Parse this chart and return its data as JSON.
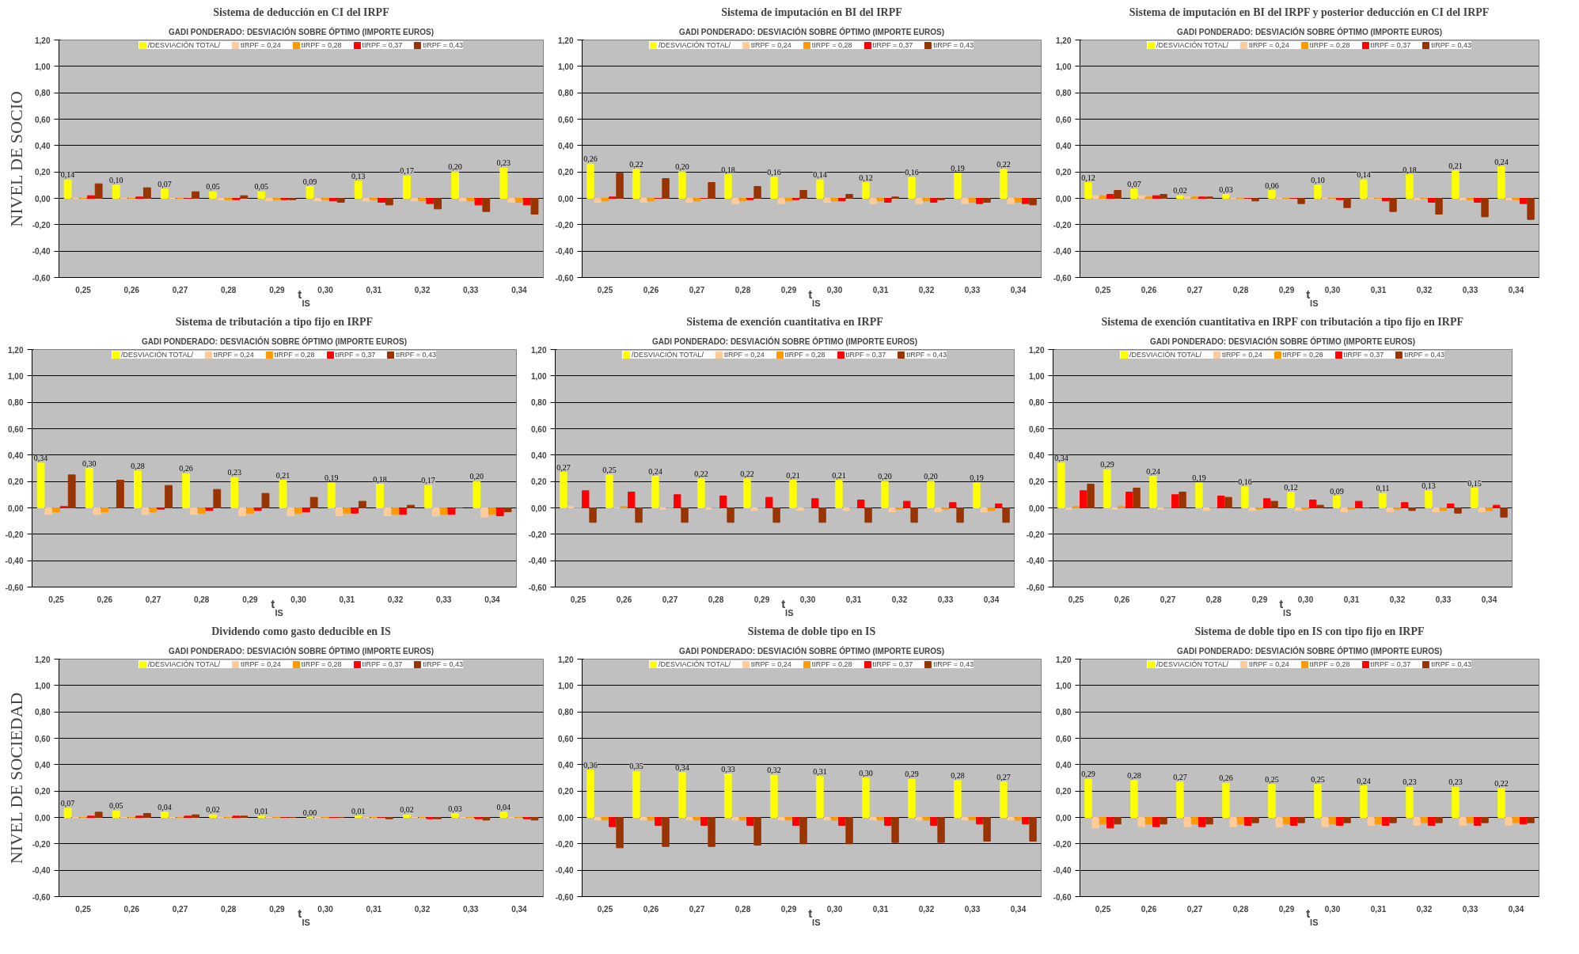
{
  "chart_data": [
    {
      "type": "bar",
      "title": "Sistema de deducción en CI del IRPF",
      "subtitle": "GADI PONDERADO: DESVIACIÓN SOBRE ÓPTIMO (IMPORTE EUROS)",
      "xlabel": "t$_{IS}$",
      "annotations": [
        "NIVEL DE SOCIO"
      ],
      "categories": [
        "0,25",
        "0,26",
        "0,27",
        "0,28",
        "0,29",
        "0,30",
        "0,31",
        "0,32",
        "0,33",
        "0,34"
      ],
      "ylim": [
        -0.6,
        1.2
      ],
      "yticks": [
        {
          "value": -0.6,
          "label": "-0,60"
        },
        {
          "value": -0.4,
          "label": "-0,40"
        },
        {
          "value": -0.2,
          "label": "-0,20"
        },
        {
          "value": 0,
          "label": "0,00"
        },
        {
          "value": 0.2,
          "label": "0,20"
        },
        {
          "value": 0.4,
          "label": "0,40"
        },
        {
          "value": 0.6,
          "label": "0,60"
        },
        {
          "value": 0.8,
          "label": "0,80"
        },
        {
          "value": 1.0,
          "label": "1,00"
        },
        {
          "value": 1.2,
          "label": "1,20"
        }
      ],
      "grid": "y",
      "legend": "top",
      "series": [
        {
          "name": "/DESVIACIÓN TOTAL/",
          "color": "#ffff00",
          "values": [
            0.14,
            0.1,
            0.07,
            0.05,
            0.05,
            0.09,
            0.13,
            0.17,
            0.2,
            0.23
          ],
          "value_labels": [
            "0,14",
            "0,10",
            "0,07",
            "0,05",
            "0,05",
            "0,09",
            "0,13",
            "0,17",
            "0,20",
            "0,23"
          ]
        },
        {
          "name": "tIRPF = 0,24",
          "color": "#ffcc99",
          "values": [
            0,
            0,
            0,
            -0.01,
            -0.02,
            -0.02,
            -0.02,
            -0.02,
            -0.02,
            -0.03
          ]
        },
        {
          "name": "tIRPF = 0,28",
          "color": "#ff9900",
          "values": [
            0,
            0,
            0,
            -0.01,
            -0.01,
            -0.01,
            -0.01,
            -0.02,
            -0.02,
            -0.03
          ]
        },
        {
          "name": "tIRPF = 0,37",
          "color": "#ff0000",
          "values": [
            0.02,
            0.01,
            0,
            -0.01,
            -0.01,
            -0.02,
            -0.03,
            -0.04,
            -0.05,
            -0.05
          ]
        },
        {
          "name": "tIRPF = 0,43",
          "color": "#993300",
          "values": [
            0.11,
            0.08,
            0.05,
            0.02,
            -0.01,
            -0.03,
            -0.05,
            -0.08,
            -0.1,
            -0.12
          ]
        }
      ]
    },
    {
      "type": "bar",
      "title": "Sistema de imputación en BI del IRPF",
      "subtitle": "GADI PONDERADO: DESVIACIÓN SOBRE ÓPTIMO (IMPORTE EUROS)",
      "xlabel": "t$_{IS}$",
      "categories": [
        "0,25",
        "0,26",
        "0,27",
        "0,28",
        "0,29",
        "0,30",
        "0,31",
        "0,32",
        "0,33",
        "0,34"
      ],
      "ylim": [
        -0.6,
        1.2
      ],
      "yticks": [
        {
          "value": -0.6,
          "label": "-0,60"
        },
        {
          "value": -0.4,
          "label": "-0,40"
        },
        {
          "value": -0.2,
          "label": "-0,20"
        },
        {
          "value": 0,
          "label": "0,00"
        },
        {
          "value": 0.2,
          "label": "0,20"
        },
        {
          "value": 0.4,
          "label": "0,40"
        },
        {
          "value": 0.6,
          "label": "0,60"
        },
        {
          "value": 0.8,
          "label": "0,80"
        },
        {
          "value": 1.0,
          "label": "1,00"
        },
        {
          "value": 1.2,
          "label": "1,20"
        }
      ],
      "grid": "y",
      "legend": "top",
      "series": [
        {
          "name": "/DESVIACIÓN TOTAL/",
          "color": "#ffff00",
          "values": [
            0.26,
            0.22,
            0.2,
            0.18,
            0.16,
            0.14,
            0.12,
            0.16,
            0.19,
            0.22
          ],
          "value_labels": [
            "0,26",
            "0,22",
            "0,20",
            "0,18",
            "0,16",
            "0,14",
            "0,12",
            "0,16",
            "0,19",
            "0,22"
          ]
        },
        {
          "name": "tIRPF = 0,24",
          "color": "#ffcc99",
          "values": [
            -0.03,
            -0.03,
            -0.03,
            -0.04,
            -0.04,
            -0.03,
            -0.04,
            -0.04,
            -0.04,
            -0.04
          ]
        },
        {
          "name": "tIRPF = 0,28",
          "color": "#ff9900",
          "values": [
            -0.02,
            -0.02,
            -0.02,
            -0.02,
            -0.02,
            -0.02,
            -0.02,
            -0.02,
            -0.03,
            -0.03
          ]
        },
        {
          "name": "tIRPF = 0,37",
          "color": "#ff0000",
          "values": [
            0.01,
            0,
            0,
            -0.01,
            -0.01,
            -0.02,
            -0.03,
            -0.03,
            -0.04,
            -0.04
          ]
        },
        {
          "name": "tIRPF = 0,43",
          "color": "#993300",
          "values": [
            0.19,
            0.15,
            0.12,
            0.09,
            0.06,
            0.03,
            0.01,
            -0.01,
            -0.03,
            -0.05
          ]
        }
      ]
    },
    {
      "type": "bar",
      "title": "Sistema de imputación en BI del IRPF y posterior deducción en CI del IRPF",
      "subtitle": "GADI PONDERADO: DESVIACIÓN SOBRE ÓPTIMO (IMPORTE EUROS)",
      "xlabel": "t$_{IS}$",
      "categories": [
        "0,25",
        "0,26",
        "0,27",
        "0,28",
        "0,29",
        "0,30",
        "0,31",
        "0,32",
        "0,33",
        "0,34"
      ],
      "ylim": [
        -0.6,
        1.2
      ],
      "yticks": [
        {
          "value": -0.6,
          "label": "-0,60"
        },
        {
          "value": -0.4,
          "label": "-0,40"
        },
        {
          "value": -0.2,
          "label": "-0,20"
        },
        {
          "value": 0,
          "label": "0,00"
        },
        {
          "value": 0.2,
          "label": "0,20"
        },
        {
          "value": 0.4,
          "label": "0,40"
        },
        {
          "value": 0.6,
          "label": "0,60"
        },
        {
          "value": 0.8,
          "label": "0,80"
        },
        {
          "value": 1.0,
          "label": "1,00"
        },
        {
          "value": 1.2,
          "label": "1,20"
        }
      ],
      "grid": "y",
      "legend": "top",
      "series": [
        {
          "name": "/DESVIACIÓN TOTAL/",
          "color": "#ffff00",
          "values": [
            0.12,
            0.07,
            0.02,
            0.03,
            0.06,
            0.1,
            0.14,
            0.18,
            0.21,
            0.24
          ],
          "value_labels": [
            "0,12",
            "0,07",
            "0,02",
            "0,03",
            "0,06",
            "0,10",
            "0,14",
            "0,18",
            "0,21",
            "0,24"
          ]
        },
        {
          "name": "tIRPF = 0,24",
          "color": "#ffcc99",
          "values": [
            0.02,
            0.02,
            0.01,
            0,
            0,
            0,
            0,
            -0.01,
            -0.01,
            -0.01
          ]
        },
        {
          "name": "tIRPF = 0,28",
          "color": "#ff9900",
          "values": [
            0.02,
            0.01,
            0.01,
            0,
            0,
            0,
            0,
            0,
            -0.01,
            -0.01
          ]
        },
        {
          "name": "tIRPF = 0,37",
          "color": "#ff0000",
          "values": [
            0.03,
            0.02,
            0.01,
            0,
            0,
            -0.01,
            -0.02,
            -0.03,
            -0.03,
            -0.04
          ]
        },
        {
          "name": "tIRPF = 0,43",
          "color": "#993300",
          "values": [
            0.06,
            0.03,
            0.01,
            -0.02,
            -0.04,
            -0.07,
            -0.1,
            -0.12,
            -0.14,
            -0.16
          ]
        }
      ]
    },
    {
      "type": "bar",
      "title": "Sistema de tributación a tipo fijo en IRPF",
      "subtitle": "GADI PONDERADO: DESVIACIÓN SOBRE ÓPTIMO (IMPORTE EUROS)",
      "xlabel": "t$_{IS}$",
      "categories": [
        "0,25",
        "0,26",
        "0,27",
        "0,28",
        "0,29",
        "0,30",
        "0,31",
        "0,32",
        "0,33",
        "0,34"
      ],
      "ylim": [
        -0.6,
        1.2
      ],
      "yticks": [
        {
          "value": -0.6,
          "label": "-0,60"
        },
        {
          "value": -0.4,
          "label": "-0,40"
        },
        {
          "value": -0.2,
          "label": "-0,20"
        },
        {
          "value": 0,
          "label": "0,00"
        },
        {
          "value": 0.2,
          "label": "0,20"
        },
        {
          "value": 0.4,
          "label": "0,40"
        },
        {
          "value": 0.6,
          "label": "0,60"
        },
        {
          "value": 0.8,
          "label": "0,80"
        },
        {
          "value": 1.0,
          "label": "1,00"
        },
        {
          "value": 1.2,
          "label": "1,20"
        }
      ],
      "grid": "y",
      "legend": "top",
      "series": [
        {
          "name": "/DESVIACIÓN TOTAL/",
          "color": "#ffff00",
          "values": [
            0.34,
            0.3,
            0.28,
            0.26,
            0.23,
            0.21,
            0.19,
            0.18,
            0.17,
            0.2
          ],
          "value_labels": [
            "0,34",
            "0,30",
            "0,28",
            "0,26",
            "0,23",
            "0,21",
            "0,19",
            "0,18",
            "0,17",
            "0,20"
          ]
        },
        {
          "name": "tIRPF = 0,24",
          "color": "#ffcc99",
          "values": [
            -0.05,
            -0.05,
            -0.05,
            -0.05,
            -0.06,
            -0.06,
            -0.06,
            -0.06,
            -0.06,
            -0.07
          ]
        },
        {
          "name": "tIRPF = 0,28",
          "color": "#ff9900",
          "values": [
            -0.03,
            -0.03,
            -0.03,
            -0.04,
            -0.04,
            -0.04,
            -0.04,
            -0.05,
            -0.05,
            -0.05
          ]
        },
        {
          "name": "tIRPF = 0,37",
          "color": "#ff0000",
          "values": [
            0.01,
            0,
            -0.01,
            -0.02,
            -0.02,
            -0.03,
            -0.04,
            -0.05,
            -0.05,
            -0.06
          ]
        },
        {
          "name": "tIRPF = 0,43",
          "color": "#993300",
          "values": [
            0.25,
            0.21,
            0.17,
            0.14,
            0.11,
            0.08,
            0.05,
            0.02,
            0,
            -0.03
          ]
        }
      ]
    },
    {
      "type": "bar",
      "title": "Sistema de exención cuantitativa en IRPF",
      "subtitle": "GADI PONDERADO: DESVIACIÓN SOBRE ÓPTIMO (IMPORTE EUROS)",
      "xlabel": "t$_{IS}$",
      "categories": [
        "0,25",
        "0,26",
        "0,27",
        "0,28",
        "0,29",
        "0,30",
        "0,31",
        "0,32",
        "0,33",
        "0,34"
      ],
      "ylim": [
        -0.6,
        1.2
      ],
      "yticks": [
        {
          "value": -0.6,
          "label": "-0,60"
        },
        {
          "value": -0.4,
          "label": "-0,40"
        },
        {
          "value": -0.2,
          "label": "-0,20"
        },
        {
          "value": 0,
          "label": "0,00"
        },
        {
          "value": 0.2,
          "label": "0,20"
        },
        {
          "value": 0.4,
          "label": "0,40"
        },
        {
          "value": 0.6,
          "label": "0,60"
        },
        {
          "value": 0.8,
          "label": "0,80"
        },
        {
          "value": 1.0,
          "label": "1,00"
        },
        {
          "value": 1.2,
          "label": "1,20"
        }
      ],
      "grid": "y",
      "legend": "top",
      "series": [
        {
          "name": "/DESVIACIÓN TOTAL/",
          "color": "#ffff00",
          "values": [
            0.27,
            0.25,
            0.24,
            0.22,
            0.22,
            0.21,
            0.21,
            0.2,
            0.2,
            0.19
          ],
          "value_labels": [
            "0,27",
            "0,25",
            "0,24",
            "0,22",
            "0,22",
            "0,21",
            "0,21",
            "0,20",
            "0,20",
            "0,19"
          ]
        },
        {
          "name": "tIRPF = 0,24",
          "color": "#ffcc99",
          "values": [
            0.01,
            0,
            -0.01,
            -0.01,
            -0.02,
            -0.02,
            -0.02,
            -0.03,
            -0.03,
            -0.03
          ]
        },
        {
          "name": "tIRPF = 0,28",
          "color": "#ff9900",
          "values": [
            0,
            0.01,
            0,
            0,
            0,
            0,
            0,
            -0.01,
            -0.01,
            -0.02
          ]
        },
        {
          "name": "tIRPF = 0,37",
          "color": "#ff0000",
          "values": [
            0.13,
            0.12,
            0.1,
            0.09,
            0.08,
            0.07,
            0.06,
            0.05,
            0.04,
            0.03
          ]
        },
        {
          "name": "tIRPF = 0,43",
          "color": "#993300",
          "values": [
            -0.11,
            -0.11,
            -0.11,
            -0.11,
            -0.11,
            -0.11,
            -0.11,
            -0.11,
            -0.11,
            -0.11
          ]
        }
      ]
    },
    {
      "type": "bar",
      "title": "Sistema de exención cuantitativa en IRPF con tributación a tipo fijo en IRPF",
      "subtitle": "GADI PONDERADO: DESVIACIÓN SOBRE ÓPTIMO (IMPORTE EUROS)",
      "xlabel": "t$_{IS}$",
      "categories": [
        "0,25",
        "0,26",
        "0,27",
        "0,28",
        "0,29",
        "0,30",
        "0,31",
        "0,32",
        "0,33",
        "0,34"
      ],
      "ylim": [
        -0.6,
        1.2
      ],
      "yticks": [
        {
          "value": -0.6,
          "label": "-0,60"
        },
        {
          "value": -0.4,
          "label": "-0,40"
        },
        {
          "value": -0.2,
          "label": "-0,20"
        },
        {
          "value": 0,
          "label": "0,00"
        },
        {
          "value": 0.2,
          "label": "0,20"
        },
        {
          "value": 0.4,
          "label": "0,40"
        },
        {
          "value": 0.6,
          "label": "0,60"
        },
        {
          "value": 0.8,
          "label": "0,80"
        },
        {
          "value": 1.0,
          "label": "1,00"
        },
        {
          "value": 1.2,
          "label": "1,20"
        }
      ],
      "grid": "y",
      "legend": "top",
      "series": [
        {
          "name": "/DESVIACIÓN TOTAL/",
          "color": "#ffff00",
          "values": [
            0.34,
            0.29,
            0.24,
            0.19,
            0.16,
            0.12,
            0.09,
            0.11,
            0.13,
            0.15
          ],
          "value_labels": [
            "0,34",
            "0,29",
            "0,24",
            "0,19",
            "0,16",
            "0,12",
            "0,09",
            "0,11",
            "0,13",
            "0,15"
          ]
        },
        {
          "name": "tIRPF = 0,24",
          "color": "#ffcc99",
          "values": [
            -0.01,
            -0.01,
            -0.01,
            -0.02,
            -0.02,
            -0.02,
            -0.03,
            -0.03,
            -0.03,
            -0.03
          ]
        },
        {
          "name": "tIRPF = 0,28",
          "color": "#ff9900",
          "values": [
            0.01,
            0.01,
            0,
            0,
            -0.01,
            -0.01,
            -0.01,
            -0.01,
            -0.02,
            -0.02
          ]
        },
        {
          "name": "tIRPF = 0,37",
          "color": "#ff0000",
          "values": [
            0.13,
            0.12,
            0.1,
            0.09,
            0.07,
            0.06,
            0.05,
            0.04,
            0.03,
            0.02
          ]
        },
        {
          "name": "tIRPF = 0,43",
          "color": "#993300",
          "values": [
            0.18,
            0.15,
            0.12,
            0.08,
            0.05,
            0.02,
            0,
            -0.02,
            -0.04,
            -0.07
          ]
        }
      ]
    },
    {
      "type": "bar",
      "title": "Dividendo como gasto deducible en IS",
      "subtitle": "GADI PONDERADO: DESVIACIÓN SOBRE ÓPTIMO (IMPORTE EUROS)",
      "xlabel": "t$_{IS}$",
      "annotations": [
        "NIVEL DE SOCIEDAD"
      ],
      "categories": [
        "0,25",
        "0,26",
        "0,27",
        "0,28",
        "0,29",
        "0,30",
        "0,31",
        "0,32",
        "0,33",
        "0,34"
      ],
      "ylim": [
        -0.6,
        1.2
      ],
      "yticks": [
        {
          "value": -0.6,
          "label": "-0,60"
        },
        {
          "value": -0.4,
          "label": "-0,40"
        },
        {
          "value": -0.2,
          "label": "-0,20"
        },
        {
          "value": 0,
          "label": "0,00"
        },
        {
          "value": 0.2,
          "label": "0,20"
        },
        {
          "value": 0.4,
          "label": "0,40"
        },
        {
          "value": 0.6,
          "label": "0,60"
        },
        {
          "value": 0.8,
          "label": "0,80"
        },
        {
          "value": 1.0,
          "label": "1,00"
        },
        {
          "value": 1.2,
          "label": "1,20"
        }
      ],
      "grid": "y",
      "legend": "top",
      "series": [
        {
          "name": "/DESVIACIÓN TOTAL/",
          "color": "#ffff00",
          "values": [
            0.07,
            0.05,
            0.04,
            0.02,
            0.01,
            0.0,
            0.01,
            0.02,
            0.03,
            0.04
          ],
          "value_labels": [
            "0,07",
            "0,05",
            "0,04",
            "0,02",
            "0,01",
            "0,00",
            "0,01",
            "0,02",
            "0,03",
            "0,04"
          ]
        },
        {
          "name": "tIRPF = 0,24",
          "color": "#ffcc99",
          "values": [
            0,
            0,
            0,
            0,
            0,
            0,
            0,
            0,
            0,
            0
          ]
        },
        {
          "name": "tIRPF = 0,28",
          "color": "#ff9900",
          "values": [
            0,
            0,
            0,
            0,
            0,
            0,
            0,
            0,
            0,
            0
          ]
        },
        {
          "name": "tIRPF = 0,37",
          "color": "#ff0000",
          "values": [
            0.01,
            0.01,
            0.01,
            0.01,
            0,
            0,
            0,
            -0.01,
            -0.01,
            -0.01
          ]
        },
        {
          "name": "tIRPF = 0,43",
          "color": "#993300",
          "values": [
            0.04,
            0.03,
            0.02,
            0.01,
            0,
            0,
            -0.01,
            -0.01,
            -0.02,
            -0.02
          ]
        }
      ]
    },
    {
      "type": "bar",
      "title": "Sistema de doble tipo en IS",
      "subtitle": "GADI PONDERADO: DESVIACIÓN SOBRE ÓPTIMO (IMPORTE EUROS)",
      "xlabel": "t$_{IS}$",
      "categories": [
        "0,25",
        "0,26",
        "0,27",
        "0,28",
        "0,29",
        "0,30",
        "0,31",
        "0,32",
        "0,33",
        "0,34"
      ],
      "ylim": [
        -0.6,
        1.2
      ],
      "yticks": [
        {
          "value": -0.6,
          "label": "-0,60"
        },
        {
          "value": -0.4,
          "label": "-0,40"
        },
        {
          "value": -0.2,
          "label": "-0,20"
        },
        {
          "value": 0,
          "label": "0,00"
        },
        {
          "value": 0.2,
          "label": "0,20"
        },
        {
          "value": 0.4,
          "label": "0,40"
        },
        {
          "value": 0.6,
          "label": "0,60"
        },
        {
          "value": 0.8,
          "label": "0,80"
        },
        {
          "value": 1.0,
          "label": "1,00"
        },
        {
          "value": 1.2,
          "label": "1,20"
        }
      ],
      "grid": "y",
      "legend": "top",
      "series": [
        {
          "name": "/DESVIACIÓN TOTAL/",
          "color": "#ffff00",
          "values": [
            0.36,
            0.35,
            0.34,
            0.33,
            0.32,
            0.31,
            0.3,
            0.29,
            0.28,
            0.27
          ],
          "value_labels": [
            "0,36",
            "0,35",
            "0,34",
            "0,33",
            "0,32",
            "0,31",
            "0,30",
            "0,29",
            "0,28",
            "0,27"
          ]
        },
        {
          "name": "tIRPF = 0,24",
          "color": "#ffcc99",
          "values": [
            -0.02,
            -0.02,
            -0.02,
            -0.02,
            -0.02,
            -0.02,
            -0.02,
            -0.02,
            -0.02,
            -0.02
          ]
        },
        {
          "name": "tIRPF = 0,28",
          "color": "#ff9900",
          "values": [
            -0.02,
            -0.02,
            -0.02,
            -0.02,
            -0.02,
            -0.02,
            -0.02,
            -0.02,
            -0.02,
            -0.02
          ]
        },
        {
          "name": "tIRPF = 0,37",
          "color": "#ff0000",
          "values": [
            -0.07,
            -0.06,
            -0.06,
            -0.06,
            -0.06,
            -0.06,
            -0.06,
            -0.06,
            -0.05,
            -0.05
          ]
        },
        {
          "name": "tIRPF = 0,43",
          "color": "#993300",
          "values": [
            -0.23,
            -0.22,
            -0.22,
            -0.21,
            -0.2,
            -0.2,
            -0.19,
            -0.19,
            -0.18,
            -0.18
          ]
        }
      ]
    },
    {
      "type": "bar",
      "title": "Sistema de doble tipo en IS con tipo fijo en IRPF",
      "subtitle": "GADI PONDERADO: DESVIACIÓN SOBRE ÓPTIMO (IMPORTE EUROS)",
      "xlabel": "t$_{IS}$",
      "categories": [
        "0,25",
        "0,26",
        "0,27",
        "0,28",
        "0,29",
        "0,30",
        "0,31",
        "0,32",
        "0,33",
        "0,34"
      ],
      "ylim": [
        -0.6,
        1.2
      ],
      "yticks": [
        {
          "value": -0.6,
          "label": "-0,60"
        },
        {
          "value": -0.4,
          "label": "-0,40"
        },
        {
          "value": -0.2,
          "label": "-0,20"
        },
        {
          "value": 0,
          "label": "0,00"
        },
        {
          "value": 0.2,
          "label": "0,20"
        },
        {
          "value": 0.4,
          "label": "0,40"
        },
        {
          "value": 0.6,
          "label": "0,60"
        },
        {
          "value": 0.8,
          "label": "0,80"
        },
        {
          "value": 1.0,
          "label": "1,00"
        },
        {
          "value": 1.2,
          "label": "1,20"
        }
      ],
      "grid": "y",
      "legend": "top",
      "series": [
        {
          "name": "/DESVIACIÓN TOTAL/",
          "color": "#ffff00",
          "values": [
            0.29,
            0.28,
            0.27,
            0.26,
            0.25,
            0.25,
            0.24,
            0.23,
            0.23,
            0.22
          ],
          "value_labels": [
            "0,29",
            "0,28",
            "0,27",
            "0,26",
            "0,25",
            "0,25",
            "0,24",
            "0,23",
            "0,23",
            "0,22"
          ]
        },
        {
          "name": "tIRPF = 0,24",
          "color": "#ffcc99",
          "values": [
            -0.08,
            -0.07,
            -0.07,
            -0.07,
            -0.07,
            -0.07,
            -0.06,
            -0.06,
            -0.06,
            -0.06
          ]
        },
        {
          "name": "tIRPF = 0,28",
          "color": "#ff9900",
          "values": [
            -0.05,
            -0.05,
            -0.05,
            -0.05,
            -0.05,
            -0.05,
            -0.05,
            -0.04,
            -0.04,
            -0.04
          ]
        },
        {
          "name": "tIRPF = 0,37",
          "color": "#ff0000",
          "values": [
            -0.08,
            -0.07,
            -0.07,
            -0.06,
            -0.06,
            -0.06,
            -0.06,
            -0.06,
            -0.06,
            -0.05
          ]
        },
        {
          "name": "tIRPF = 0,43",
          "color": "#993300",
          "values": [
            -0.05,
            -0.05,
            -0.05,
            -0.04,
            -0.04,
            -0.04,
            -0.04,
            -0.04,
            -0.04,
            -0.04
          ]
        }
      ]
    }
  ]
}
